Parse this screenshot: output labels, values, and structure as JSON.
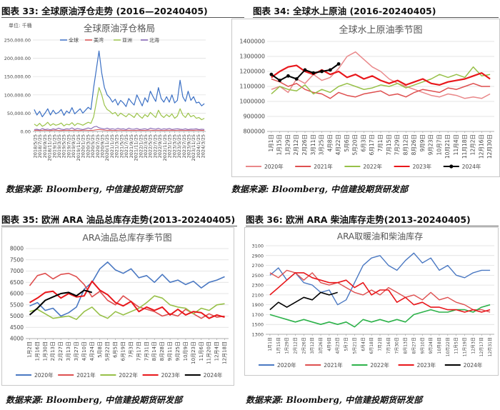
{
  "figures": [
    {
      "caption": "图表 33:  全球原油浮仓走势 (2016—20240405)",
      "source": "数据来源: Bloomberg, 中信建投期货研究部"
    },
    {
      "caption": "图表 34:  全球水上原油 (2016-20240405)",
      "source": "数据来源: Bloomberg, 中信建投期货研发部"
    },
    {
      "caption": "图表 35:  欧洲 ARA 油品总库存走势(2013-20240405)",
      "source": "数据来源: Bloomberg, 中信建投期货研发部"
    },
    {
      "caption": "图表 36:  欧洲 ARA 柴油库存走势(2013-20240405)",
      "source": "数据来源: Bloomberg, 中信建投期货研发部"
    }
  ],
  "colors": {
    "s2020": "#4a78c2",
    "s2021": "#de4f4f",
    "s2022": "#97c048",
    "s2023": "#e8171b",
    "s2024": "#000000",
    "global": "#3a6fc4",
    "us": "#d94a4a",
    "asia": "#9bc34a",
    "northsea": "#7d5cb0",
    "pink2020": "#e9888a",
    "green2022": "#2db24a"
  },
  "chart_data": [
    {
      "type": "line",
      "title": "全球原油浮仓格局",
      "unit_label": "单位: 千桶",
      "yticks": [
        "0.00",
        "50,000.00",
        "100,000.00",
        "150,000.00",
        "200,000.00",
        "250,000.00"
      ],
      "ylim": [
        0,
        250000
      ],
      "xticks": [
        "2018/5/25",
        "2018/7/25",
        "2018/9/25",
        "2018/11/25",
        "2019/1/25",
        "2019/3/25",
        "2019/5/25",
        "2019/7/25",
        "2019/9/25",
        "2019/11/25",
        "2020/1/25",
        "2020/3/25",
        "2020/5/25",
        "2020/7/25",
        "2020/9/25",
        "2020/11/25",
        "2021/1/25",
        "2021/3/25",
        "2021/5/25",
        "2021/7/25",
        "2021/9/25",
        "2021/11/25",
        "2022/1/25",
        "2022/3/25",
        "2022/5/25",
        "2022/7/25",
        "2022/9/25",
        "2022/11/25",
        "2023/1/25",
        "2023/3/25",
        "2023/5/25",
        "2023/7/25",
        "2023/9/25",
        "2023/11/25",
        "2024/1/25",
        "2024/3/25"
      ],
      "series": [
        {
          "name": "全球",
          "values": [
            60000,
            45000,
            55000,
            40000,
            50000,
            62000,
            45000,
            58000,
            48000,
            52000,
            60000,
            44000,
            56000,
            50000,
            65000,
            48000,
            55000,
            62000,
            50000,
            58000,
            66000,
            60000,
            120000,
            170000,
            220000,
            160000,
            120000,
            100000,
            92000,
            80000,
            88000,
            72000,
            85000,
            78000,
            68000,
            90000,
            80000,
            72000,
            100000,
            85000,
            70000,
            92000,
            80000,
            110000,
            95000,
            82000,
            120000,
            90000,
            80000,
            95000,
            80000,
            100000,
            78000,
            85000,
            140000,
            95000,
            82000,
            110000,
            85000,
            95000,
            78000,
            80000,
            70000,
            76000
          ]
        },
        {
          "name": "美湾",
          "values": [
            3000,
            3500,
            2800,
            3200,
            3800,
            3000,
            2600,
            3300,
            3600,
            3000,
            2500,
            3100,
            3400,
            2900,
            3200,
            3600,
            3000,
            2800,
            3300,
            3500,
            3100,
            3000,
            3400,
            4200,
            5200,
            4500,
            3800,
            3200,
            3600,
            3000,
            2800,
            3300,
            3600,
            3000,
            3200,
            3500,
            3000,
            2800,
            3200,
            3600,
            3000,
            2900,
            3300,
            3500,
            3000,
            3200,
            3600,
            3000,
            2800,
            3300,
            3100,
            3500,
            3000,
            3200,
            3600,
            3100,
            3000,
            3400,
            3200,
            3000,
            3300,
            3500,
            3000,
            3100
          ]
        },
        {
          "name": "亚洲",
          "values": [
            20000,
            15000,
            22000,
            14000,
            18000,
            25000,
            16000,
            21000,
            17000,
            19000,
            23000,
            15000,
            20000,
            18000,
            24000,
            16000,
            22000,
            20000,
            17000,
            21000,
            25000,
            22000,
            40000,
            80000,
            120000,
            100000,
            72000,
            60000,
            55000,
            48000,
            52000,
            42000,
            50000,
            45000,
            40000,
            48000,
            44000,
            38000,
            50000,
            42000,
            36000,
            46000,
            40000,
            52000,
            45000,
            38000,
            58000,
            44000,
            38000,
            46000,
            40000,
            48000,
            36000,
            42000,
            62000,
            45000,
            38000,
            50000,
            40000,
            44000,
            36000,
            38000,
            32000,
            36000
          ]
        },
        {
          "name": "北海",
          "values": [
            5000,
            6000,
            4000,
            8000,
            5000,
            6500,
            4500,
            7000,
            5500,
            9000,
            6000,
            5000,
            7500,
            6000,
            10000,
            5500,
            8000,
            6500,
            5000,
            7000,
            9500,
            7000,
            12000,
            14000,
            10000,
            8000,
            6500,
            9000,
            6000,
            7500,
            5500,
            8500,
            6500,
            7000,
            5000,
            9000,
            6500,
            6000,
            8000,
            5500,
            6000,
            7500,
            5000,
            9000,
            7000,
            6000,
            8500,
            5500,
            7000,
            6000,
            8000,
            5500,
            6500,
            7500,
            6000,
            5500,
            7000,
            5000,
            6500,
            6000,
            7000,
            5000,
            6000,
            5500
          ]
        }
      ]
    },
    {
      "type": "line",
      "title": "全球水上原油季节图",
      "yticks": [
        "800000",
        "900000",
        "1000000",
        "1100000",
        "1200000",
        "1300000",
        "1400000"
      ],
      "ylim": [
        800000,
        1400000
      ],
      "xticks": [
        "1月1日",
        "1月15日",
        "1月29日",
        "2月12日",
        "2月26日",
        "3月11日",
        "3月25日",
        "4月8日",
        "4月22日",
        "5月6日",
        "5月20日",
        "6月3日",
        "6月17日",
        "7月1日",
        "7月15日",
        "7月29日",
        "8月12日",
        "8月26日",
        "9月9日",
        "9月23日",
        "10月7日",
        "10月21日",
        "11月4日",
        "11月18日",
        "12月2日",
        "12月16日",
        "12月30日"
      ],
      "legend": [
        "2020年",
        "2021年",
        "2022年",
        "2023年",
        "2024年"
      ],
      "series": [
        {
          "name": "2020年",
          "values": [
            1080000,
            1100000,
            1060000,
            1150000,
            1120000,
            1180000,
            1140000,
            1160000,
            1220000,
            1300000,
            1330000,
            1280000,
            1230000,
            1200000,
            1150000,
            1120000,
            1100000,
            1080000,
            1060000,
            1040000,
            1030000,
            1050000,
            1040000,
            1020000,
            1030000,
            1020000,
            1050000
          ]
        },
        {
          "name": "2021年",
          "values": [
            1150000,
            1130000,
            1100000,
            1120000,
            1080000,
            1060000,
            1050000,
            1020000,
            1060000,
            1040000,
            1030000,
            1050000,
            1060000,
            1070000,
            1040000,
            1050000,
            1030000,
            1060000,
            1080000,
            1070000,
            1060000,
            1090000,
            1080000,
            1100000,
            1120000,
            1100000,
            1100000
          ]
        },
        {
          "name": "2022年",
          "values": [
            1050000,
            1100000,
            1080000,
            1070000,
            1110000,
            1050000,
            1080000,
            1060000,
            1100000,
            1120000,
            1100000,
            1080000,
            1090000,
            1110000,
            1100000,
            1120000,
            1090000,
            1110000,
            1130000,
            1150000,
            1180000,
            1160000,
            1180000,
            1160000,
            1230000,
            1170000,
            1180000
          ]
        },
        {
          "name": "2023年",
          "values": [
            1160000,
            1200000,
            1230000,
            1240000,
            1200000,
            1180000,
            1210000,
            1180000,
            1200000,
            1160000,
            1180000,
            1150000,
            1170000,
            1140000,
            1120000,
            1140000,
            1110000,
            1130000,
            1150000,
            1120000,
            1110000,
            1130000,
            1140000,
            1150000,
            1170000,
            1190000,
            1150000
          ]
        },
        {
          "name": "2024年",
          "values": [
            1180000,
            1140000,
            1170000,
            1150000,
            1210000,
            1190000,
            1200000,
            1210000,
            1250000,
            null,
            null,
            null,
            null,
            null,
            null,
            null,
            null,
            null,
            null,
            null,
            null,
            null,
            null,
            null,
            null,
            null,
            null
          ]
        }
      ]
    },
    {
      "type": "line",
      "title": "ARA油品总库存季节图",
      "yticks": [
        "4000",
        "4500",
        "5000",
        "5500",
        "6000",
        "6500",
        "7000",
        "7500",
        "8000"
      ],
      "ylim": [
        4000,
        8000
      ],
      "xticks": [
        "1月2日",
        "1月16日",
        "1月30日",
        "2月13日",
        "2月27日",
        "3月13日",
        "3月27日",
        "4月10日",
        "4月24日",
        "5月8日",
        "5月22日",
        "6月5日",
        "6月19日",
        "7月3日",
        "7月17日",
        "7月31日",
        "8月14日",
        "8月28日",
        "9月11日",
        "9月25日",
        "10月9日",
        "10月23日",
        "11月6日",
        "11月20日",
        "12月4日",
        "12月18日"
      ],
      "legend": [
        "2020年",
        "2021年",
        "2022年",
        "2023年",
        "2024年"
      ],
      "series": [
        {
          "name": "2020年",
          "values": [
            5450,
            5600,
            5250,
            5350,
            5000,
            5150,
            5400,
            6200,
            6500,
            7100,
            7400,
            7050,
            6900,
            7100,
            6700,
            6800,
            6500,
            6850,
            6500,
            6600,
            6400,
            6550,
            6250,
            6500,
            6600,
            6750
          ]
        },
        {
          "name": "2021年",
          "values": [
            6350,
            6800,
            6900,
            6650,
            6850,
            6900,
            6750,
            6400,
            5850,
            6100,
            5700,
            5500,
            5900,
            5650,
            5400,
            5300,
            5200,
            5000,
            5100,
            5000,
            5300,
            5100,
            4900,
            5100,
            4950,
            5000
          ]
        },
        {
          "name": "2022年",
          "values": [
            5200,
            5300,
            5100,
            4900,
            4950,
            5000,
            4850,
            5200,
            5400,
            5050,
            4900,
            5200,
            5050,
            5200,
            5350,
            5600,
            5900,
            5800,
            5500,
            5400,
            5350,
            5100,
            5350,
            5250,
            5500,
            5550
          ]
        },
        {
          "name": "2023年",
          "values": [
            5600,
            5800,
            6050,
            6100,
            5800,
            6000,
            5850,
            5900,
            6550,
            6150,
            5950,
            5600,
            5450,
            5650,
            5200,
            5400,
            5250,
            5400,
            5050,
            5300,
            5050,
            5200,
            5150,
            4900,
            5050,
            4950
          ]
        },
        {
          "name": "2024年",
          "values": [
            5050,
            5350,
            5700,
            5850,
            6000,
            6050,
            5900,
            6150,
            6050,
            null,
            null,
            null,
            null,
            null,
            null,
            null,
            null,
            null,
            null,
            null,
            null,
            null,
            null,
            null,
            null,
            null
          ]
        }
      ]
    },
    {
      "type": "line",
      "title": "ARA取暖油和柴油库存",
      "yticks": [
        "1300",
        "1500",
        "1700",
        "1900",
        "2100",
        "2300",
        "2500",
        "2700",
        "2900",
        "3100"
      ],
      "ylim": [
        1300,
        3100
      ],
      "xticks": [
        "1月1日",
        "1月15日",
        "1月29日",
        "2月12日",
        "2月26日",
        "3月12日",
        "3月26日",
        "4月9日",
        "4月23日",
        "5月7日",
        "5月21日",
        "6月4日",
        "6月18日",
        "7月2日",
        "7月16日",
        "7月30日",
        "8月13日",
        "8月27日",
        "9月10日",
        "9月24日",
        "10月8日",
        "10月22日",
        "11月5日",
        "11月19日",
        "12月3日",
        "12月17日",
        "12月31日"
      ],
      "legend": [
        "2020年",
        "2021年",
        "2022年",
        "2023年",
        "2024年"
      ],
      "series": [
        {
          "name": "2020年",
          "values": [
            2500,
            2650,
            2400,
            2550,
            2350,
            2300,
            2150,
            2200,
            1900,
            2000,
            2350,
            2700,
            2850,
            2900,
            2700,
            2600,
            2800,
            2950,
            2750,
            2850,
            2600,
            2700,
            2500,
            2450,
            2550,
            2600,
            2600
          ]
        },
        {
          "name": "2021年",
          "values": [
            2550,
            2450,
            2600,
            2550,
            2400,
            2550,
            2350,
            2300,
            2350,
            2250,
            2150,
            2100,
            2200,
            2100,
            2250,
            2150,
            2050,
            2100,
            2000,
            2150,
            2000,
            2050,
            1950,
            1900,
            1800,
            1800,
            1750
          ]
        },
        {
          "name": "2022年",
          "values": [
            1700,
            1650,
            1600,
            1550,
            1600,
            1550,
            1500,
            1550,
            1500,
            1550,
            1450,
            1600,
            1550,
            1600,
            1550,
            1600,
            1550,
            1700,
            1750,
            1800,
            1750,
            1750,
            1800,
            1800,
            1750,
            1850,
            1900
          ]
        },
        {
          "name": "2023年",
          "values": [
            2100,
            2250,
            2400,
            2550,
            2550,
            2450,
            2400,
            2350,
            2350,
            2400,
            2250,
            2350,
            2100,
            2200,
            2200,
            1950,
            2050,
            1900,
            1950,
            1850,
            1850,
            1800,
            1800,
            1750,
            1800,
            1750,
            1800
          ]
        },
        {
          "name": "2024年",
          "values": [
            1800,
            1950,
            1850,
            1950,
            2050,
            2000,
            2150,
            2100,
            2150,
            null,
            null,
            null,
            null,
            null,
            null,
            null,
            null,
            null,
            null,
            null,
            null,
            null,
            null,
            null,
            null,
            null,
            null
          ]
        }
      ]
    }
  ]
}
